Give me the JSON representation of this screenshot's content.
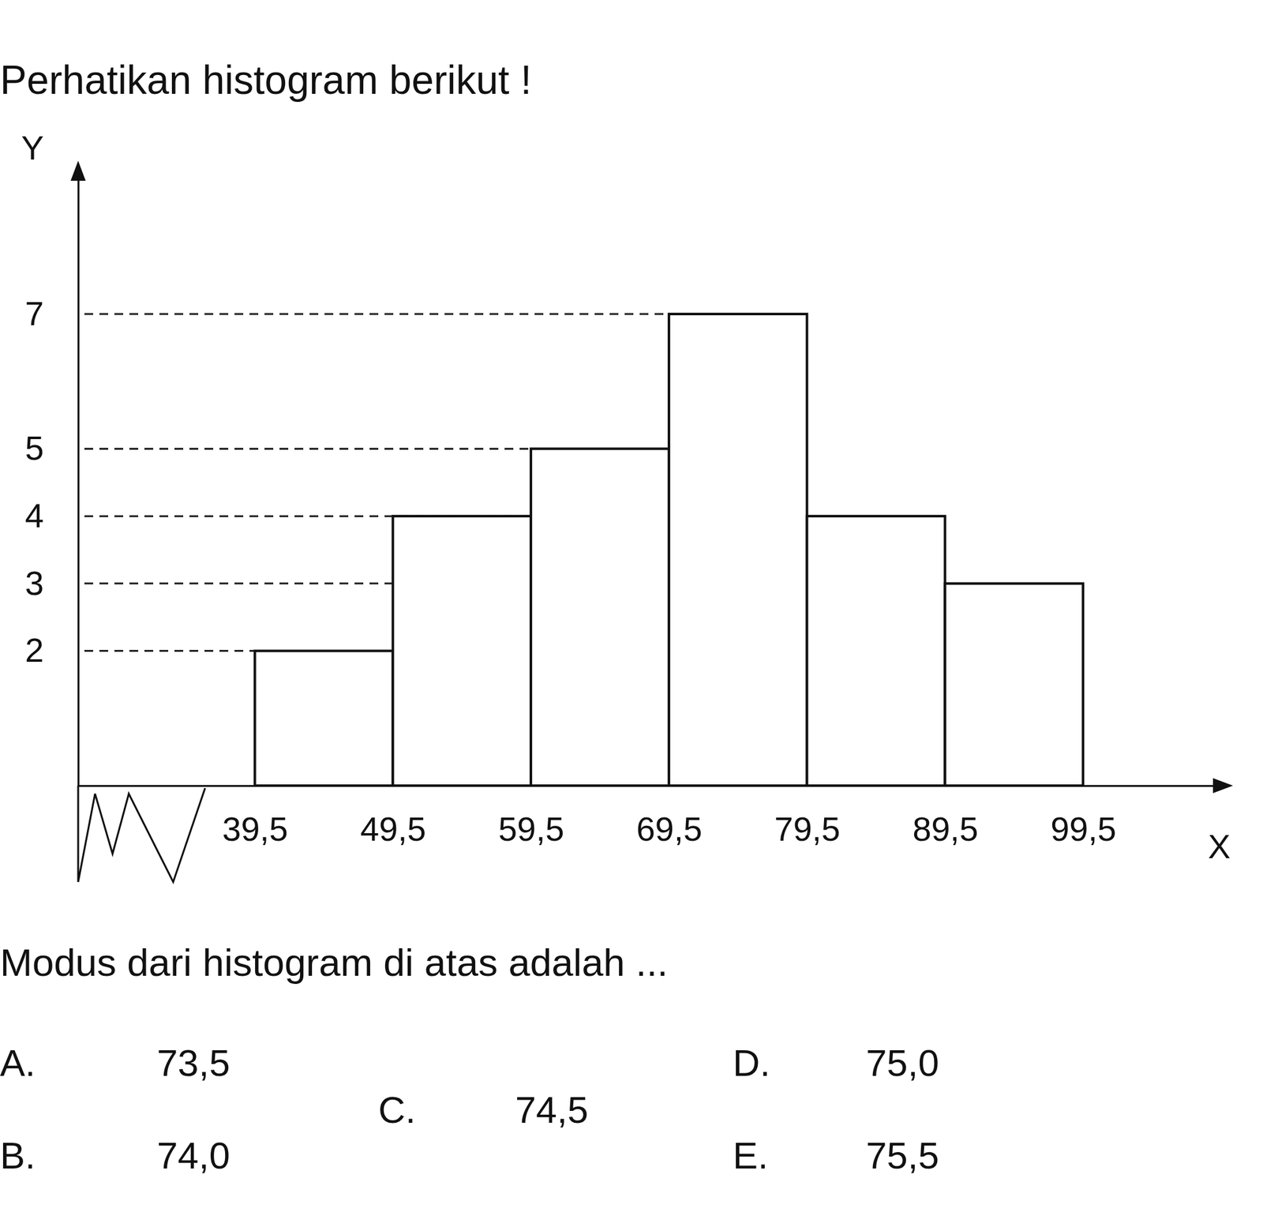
{
  "chart_data": {
    "type": "histogram",
    "title": "Perhatikan histogram berikut !",
    "xlabel": "X",
    "ylabel": "Y",
    "bins": [
      39.5,
      49.5,
      59.5,
      69.5,
      79.5,
      89.5,
      99.5
    ],
    "values": [
      2,
      4,
      5,
      7,
      4,
      3
    ],
    "color": "#ffffff",
    "xlim": [
      26.7,
      110
    ],
    "ylim": [
      0,
      9.2
    ],
    "xticks": [
      {
        "value": 39.5,
        "label": "39,5"
      },
      {
        "value": 49.5,
        "label": "49,5"
      },
      {
        "value": 59.5,
        "label": "59,5"
      },
      {
        "value": 69.5,
        "label": "69,5"
      },
      {
        "value": 79.5,
        "label": "79,5"
      },
      {
        "value": 89.5,
        "label": "89,5"
      },
      {
        "value": 99.5,
        "label": "99,5"
      }
    ],
    "yticks": [
      2,
      3,
      4,
      5,
      7
    ],
    "grid": true
  },
  "question": {
    "prompt": "Modus dari histogram di atas adalah ...",
    "options": [
      {
        "letter": "A.",
        "text": "73,5"
      },
      {
        "letter": "B.",
        "text": "74,0"
      },
      {
        "letter": "C.",
        "text": "74,5"
      },
      {
        "letter": "D.",
        "text": "75,0"
      },
      {
        "letter": "E.",
        "text": "75,5"
      }
    ]
  }
}
